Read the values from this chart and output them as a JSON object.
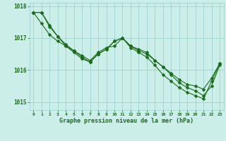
{
  "line1": [
    1017.8,
    1017.8,
    1017.4,
    1017.05,
    1016.8,
    1016.6,
    1016.4,
    1016.25,
    1016.5,
    1016.65,
    1016.9,
    1017.0,
    1016.75,
    1016.6,
    1016.5,
    1016.3,
    1016.1,
    1015.9,
    1015.7,
    1015.55,
    1015.5,
    1015.4,
    1015.75,
    1016.2
  ],
  "line2": [
    1017.8,
    1017.8,
    1017.35,
    1017.05,
    1016.75,
    1016.55,
    1016.35,
    1016.25,
    1016.5,
    1016.65,
    1016.9,
    1017.0,
    1016.7,
    1016.55,
    1016.4,
    1016.15,
    1015.85,
    1015.65,
    1015.45,
    1015.3,
    1015.2,
    1015.1,
    1015.65,
    1016.2
  ],
  "line3": [
    1017.8,
    1017.45,
    1017.1,
    1016.9,
    1016.75,
    1016.6,
    1016.45,
    1016.3,
    1016.55,
    1016.7,
    1016.75,
    1017.0,
    1016.75,
    1016.65,
    1016.55,
    1016.3,
    1016.1,
    1015.85,
    1015.6,
    1015.45,
    1015.35,
    1015.2,
    1015.5,
    1016.15
  ],
  "x": [
    0,
    1,
    2,
    3,
    4,
    5,
    6,
    7,
    8,
    9,
    10,
    11,
    12,
    13,
    14,
    15,
    16,
    17,
    18,
    19,
    20,
    21,
    22,
    23
  ],
  "ylim": [
    1014.75,
    1018.1
  ],
  "yticks": [
    1015,
    1016,
    1017,
    1018
  ],
  "xticks": [
    0,
    1,
    2,
    3,
    4,
    5,
    6,
    7,
    8,
    9,
    10,
    11,
    12,
    13,
    14,
    15,
    16,
    17,
    18,
    19,
    20,
    21,
    22,
    23
  ],
  "line_color": "#1a6b1a",
  "bg_color": "#cceee8",
  "grid_color": "#99cccc",
  "xlabel": "Graphe pression niveau de la mer (hPa)",
  "xlabel_color": "#1a6b1a",
  "tick_color": "#1a6b1a",
  "marker": "D",
  "marker_size": 2.5,
  "linewidth": 0.8
}
